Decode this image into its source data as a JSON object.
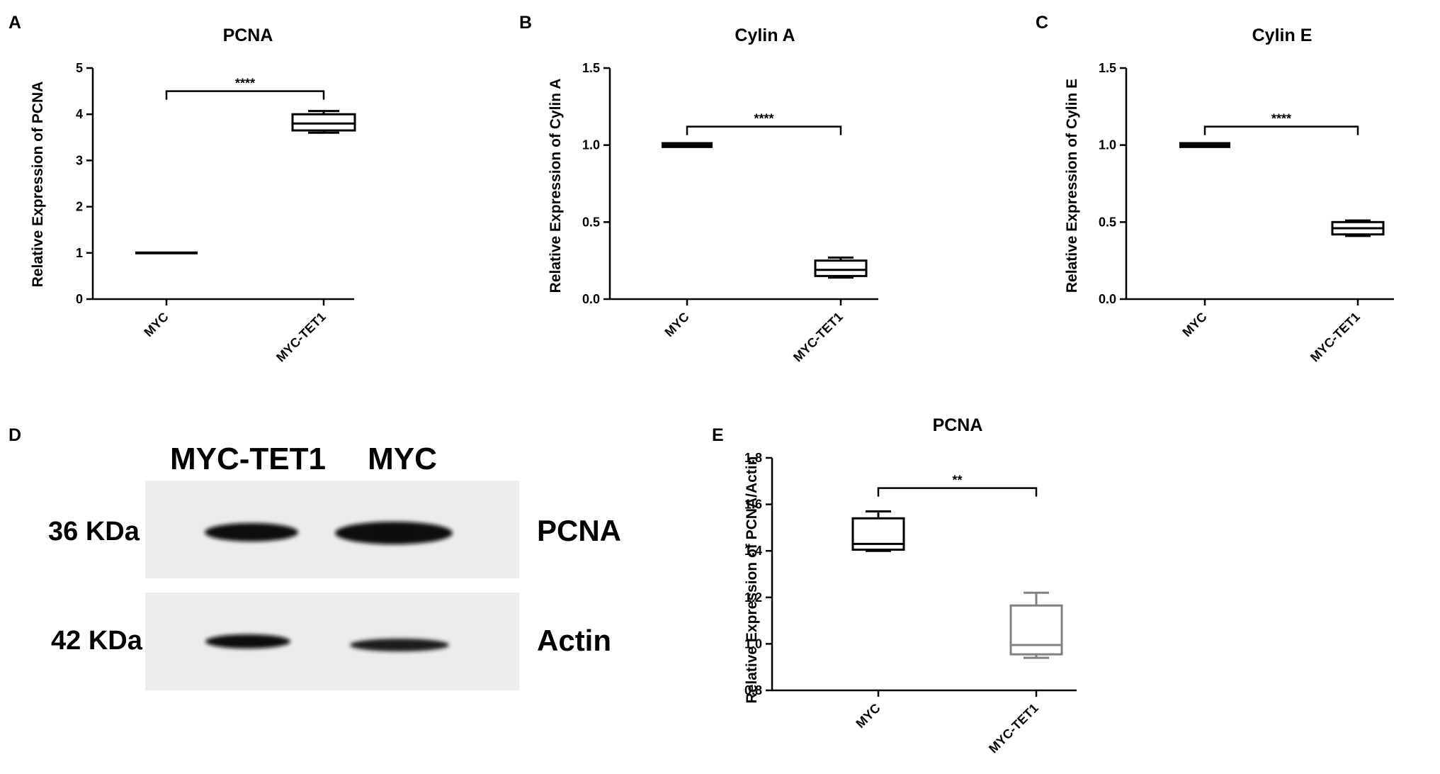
{
  "panels": {
    "A": "A",
    "B": "B",
    "C": "C",
    "D": "D",
    "E": "E"
  },
  "chart_data": [
    {
      "id": "A",
      "type": "box",
      "title": "PCNA",
      "ylabel": "Relative Expression of PCNA",
      "ylim": [
        0,
        5
      ],
      "yticks": [
        0,
        1,
        2,
        3,
        4,
        5
      ],
      "ytick_labels": [
        "0",
        "1",
        "2",
        "3",
        "4",
        "5"
      ],
      "categories": [
        "MYC",
        "MYC-TET1"
      ],
      "boxes": [
        {
          "min": 1.0,
          "q1": 1.0,
          "median": 1.0,
          "q3": 1.0,
          "max": 1.0,
          "color": "#000000"
        },
        {
          "min": 3.6,
          "q1": 3.65,
          "median": 3.8,
          "q3": 4.0,
          "max": 4.07,
          "color": "#000000"
        }
      ],
      "significance": {
        "label": "****",
        "between": [
          0,
          1
        ],
        "y": 4.5
      }
    },
    {
      "id": "B",
      "type": "box",
      "title": "Cylin A",
      "ylabel": "Relative Expression of Cylin A",
      "ylim": [
        0,
        1.5
      ],
      "yticks": [
        0,
        0.5,
        1.0,
        1.5
      ],
      "ytick_labels": [
        "0.0",
        "0.5",
        "1.0",
        "1.5"
      ],
      "categories": [
        "MYC",
        "MYC-TET1"
      ],
      "boxes": [
        {
          "min": 0.99,
          "q1": 0.995,
          "median": 1.0,
          "q3": 1.005,
          "max": 1.01,
          "color": "#000000"
        },
        {
          "min": 0.14,
          "q1": 0.15,
          "median": 0.19,
          "q3": 0.25,
          "max": 0.27,
          "color": "#000000"
        }
      ],
      "significance": {
        "label": "****",
        "between": [
          0,
          1
        ],
        "y": 1.12
      }
    },
    {
      "id": "C",
      "type": "box",
      "title": "Cylin E",
      "ylabel": "Relative Expression of Cylin E",
      "ylim": [
        0,
        1.5
      ],
      "yticks": [
        0,
        0.5,
        1.0,
        1.5
      ],
      "ytick_labels": [
        "0.0",
        "0.5",
        "1.0",
        "1.5"
      ],
      "categories": [
        "MYC",
        "MYC-TET1"
      ],
      "boxes": [
        {
          "min": 0.99,
          "q1": 0.995,
          "median": 1.0,
          "q3": 1.005,
          "max": 1.01,
          "color": "#000000"
        },
        {
          "min": 0.41,
          "q1": 0.42,
          "median": 0.46,
          "q3": 0.5,
          "max": 0.51,
          "color": "#000000"
        }
      ],
      "significance": {
        "label": "****",
        "between": [
          0,
          1
        ],
        "y": 1.12
      }
    },
    {
      "id": "E",
      "type": "box",
      "title": "PCNA",
      "ylabel": "Relative Expression of PCNA/Actin",
      "ylim": [
        0.8,
        1.8
      ],
      "yticks": [
        0.8,
        1.0,
        1.2,
        1.4,
        1.6,
        1.8
      ],
      "ytick_labels": [
        "0.8",
        "1.0",
        "1.2",
        "1.4",
        "1.6",
        "1.8"
      ],
      "categories": [
        "MYC",
        "MYC-TET1"
      ],
      "boxes": [
        {
          "min": 1.4,
          "q1": 1.405,
          "median": 1.43,
          "q3": 1.54,
          "max": 1.57,
          "color": "#000000"
        },
        {
          "min": 0.94,
          "q1": 0.955,
          "median": 0.995,
          "q3": 1.165,
          "max": 1.22,
          "color": "#808080"
        }
      ],
      "significance": {
        "label": "**",
        "between": [
          0,
          1
        ],
        "y": 1.67
      }
    }
  ],
  "blot": {
    "lane_labels": [
      "MYC-TET1",
      "MYC"
    ],
    "rows": [
      {
        "size": "36 KDa",
        "protein": "PCNA"
      },
      {
        "size": "42 KDa",
        "protein": "Actin"
      }
    ]
  },
  "colors": {
    "axis": "#000000",
    "muted_box": "#808080",
    "blot_bg": "#ececec",
    "band": "#0d0d0d"
  }
}
